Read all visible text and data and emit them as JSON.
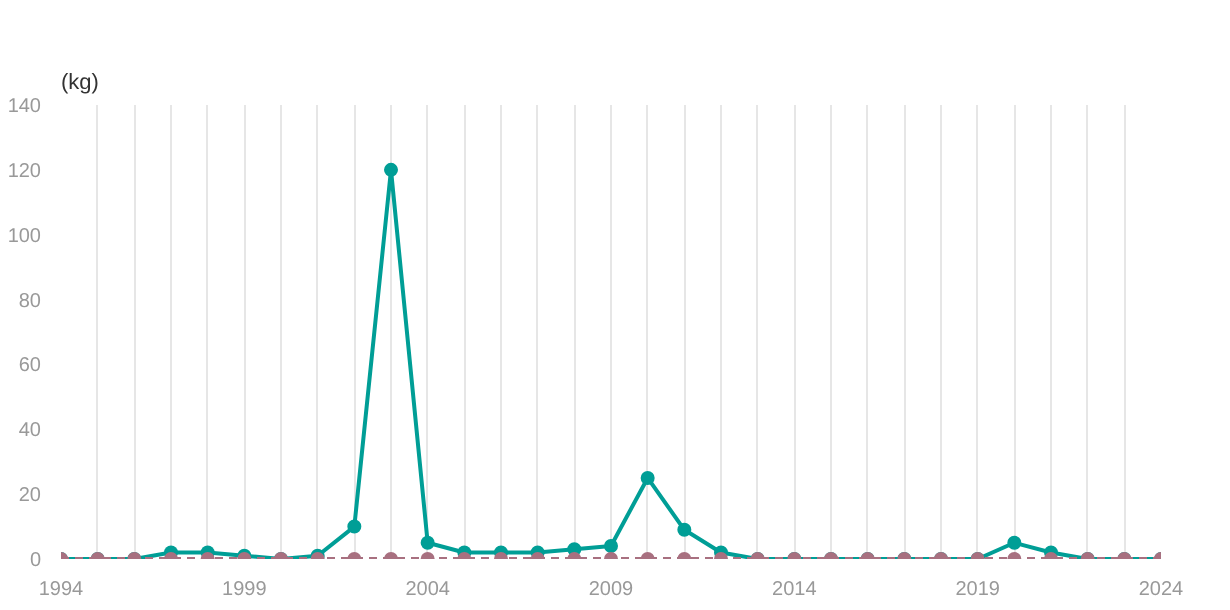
{
  "chart_data": {
    "type": "line",
    "ylabel": "(kg)",
    "x": [
      1994,
      1995,
      1996,
      1997,
      1998,
      1999,
      2000,
      2001,
      2002,
      2003,
      2004,
      2005,
      2006,
      2007,
      2008,
      2009,
      2010,
      2011,
      2012,
      2013,
      2014,
      2015,
      2016,
      2017,
      2018,
      2019,
      2020,
      2021,
      2022,
      2023,
      2024
    ],
    "series": [
      {
        "color": "#009e96",
        "line_style": "solid",
        "values": [
          0,
          0,
          0,
          2,
          2,
          1,
          0,
          1,
          10,
          120,
          5,
          2,
          2,
          2,
          3,
          4,
          25,
          9,
          2,
          0,
          0,
          0,
          0,
          0,
          0,
          0,
          5,
          2,
          0,
          0,
          0
        ]
      },
      {
        "color": "#a87080",
        "line_style": "dashed",
        "values": [
          0,
          0,
          0,
          0,
          0,
          0,
          0,
          0,
          0,
          0,
          0,
          0,
          0,
          0,
          0,
          0,
          0,
          0,
          0,
          0,
          0,
          0,
          0,
          0,
          0,
          0,
          0,
          0,
          0,
          0,
          0
        ]
      }
    ],
    "xlim": [
      1994,
      2024
    ],
    "xticks": [
      1994,
      {
        "value": 1995,
        "label": null
      },
      {
        "value": 1996,
        "label": null
      },
      {
        "value": 1997,
        "label": null
      },
      {
        "value": 1998,
        "label": null
      },
      1999,
      {
        "value": 2000,
        "label": null
      },
      {
        "value": 2001,
        "label": null
      },
      {
        "value": 2002,
        "label": null
      },
      {
        "value": 2003,
        "label": null
      },
      2004,
      {
        "value": 2005,
        "label": null
      },
      {
        "value": 2006,
        "label": null
      },
      {
        "value": 2007,
        "label": null
      },
      {
        "value": 2008,
        "label": null
      },
      2009,
      {
        "value": 2010,
        "label": null
      },
      {
        "value": 2011,
        "label": null
      },
      {
        "value": 2012,
        "label": null
      },
      {
        "value": 2013,
        "label": null
      },
      2014,
      {
        "value": 2015,
        "label": null
      },
      {
        "value": 2016,
        "label": null
      },
      {
        "value": 2017,
        "label": null
      },
      {
        "value": 2018,
        "label": null
      },
      2019,
      {
        "value": 2020,
        "label": null
      },
      {
        "value": 2021,
        "label": null
      },
      {
        "value": 2022,
        "label": null
      },
      {
        "value": 2023,
        "label": null
      },
      2024
    ],
    "ylim": [
      0,
      140
    ],
    "yticks": [
      0,
      20,
      40,
      60,
      80,
      100,
      120,
      140
    ],
    "grid": "x",
    "marker": "circle"
  }
}
